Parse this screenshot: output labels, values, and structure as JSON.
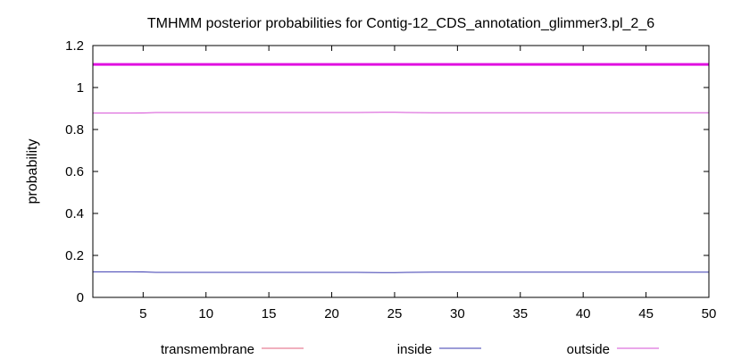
{
  "chart_data": {
    "type": "line",
    "title": "TMHMM posterior probabilities for Contig-12_CDS_annotation_glimmer3.pl_2_6",
    "xlabel": "",
    "ylabel": "probability",
    "xlim": [
      1,
      50
    ],
    "ylim": [
      0,
      1.2
    ],
    "x_ticks": [
      5,
      10,
      15,
      20,
      25,
      30,
      35,
      40,
      45,
      50
    ],
    "y_ticks": [
      0,
      0.2,
      0.4,
      0.6,
      0.8,
      1,
      1.2
    ],
    "x_tick_labels": [
      "5",
      "10",
      "15",
      "20",
      "25",
      "30",
      "35",
      "40",
      "45",
      "50"
    ],
    "y_tick_labels": [
      "0",
      "0.2",
      "0.4",
      "0.6",
      "0.8",
      "1",
      "1.2"
    ],
    "grid": false,
    "legend_position": "bottom",
    "series": [
      {
        "name": "transmembrane",
        "color": "#e0607e",
        "x": [
          1,
          50
        ],
        "y": [
          0,
          0
        ]
      },
      {
        "name": "inside",
        "color": "#3a3ab0",
        "x": [
          1,
          4,
          5,
          6,
          22,
          24,
          25,
          26,
          28,
          50
        ],
        "y": [
          0.122,
          0.122,
          0.121,
          0.119,
          0.119,
          0.118,
          0.118,
          0.119,
          0.12,
          0.12
        ]
      },
      {
        "name": "outside",
        "color": "#d64fd6",
        "x": [
          1,
          4,
          5,
          6,
          22,
          24,
          25,
          26,
          28,
          50
        ],
        "y": [
          0.878,
          0.878,
          0.879,
          0.881,
          0.881,
          0.882,
          0.882,
          0.881,
          0.88,
          0.88
        ]
      }
    ],
    "annotations": [
      {
        "type": "hline",
        "y": 1.11,
        "color": "#e010e0"
      }
    ]
  }
}
